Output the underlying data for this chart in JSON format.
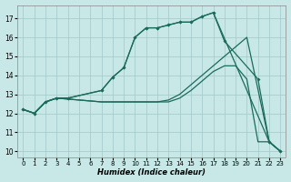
{
  "background_color": "#c8e8e8",
  "grid_color": "#a8cccc",
  "line_color": "#1a6b5a",
  "xlabel": "Humidex (Indice chaleur)",
  "xlim": [
    -0.5,
    23.5
  ],
  "ylim": [
    9.7,
    17.7
  ],
  "yticks": [
    10,
    11,
    12,
    13,
    14,
    15,
    16,
    17
  ],
  "xticks": [
    0,
    1,
    2,
    3,
    4,
    5,
    6,
    7,
    8,
    9,
    10,
    11,
    12,
    13,
    14,
    15,
    16,
    17,
    18,
    19,
    20,
    21,
    22,
    23
  ],
  "curve1_x": [
    0,
    1,
    2,
    3,
    4,
    7,
    8,
    9,
    10,
    11,
    12,
    13,
    14,
    15,
    16,
    17,
    22,
    23
  ],
  "curve1_y": [
    12.2,
    12.0,
    12.6,
    12.8,
    12.8,
    13.2,
    13.9,
    14.4,
    16.0,
    16.5,
    16.5,
    16.65,
    16.8,
    16.8,
    17.1,
    17.3,
    10.5,
    10.0
  ],
  "curve2_x": [
    0,
    1,
    2,
    3,
    4,
    7,
    8,
    9,
    10,
    11,
    12,
    13,
    14,
    15,
    16,
    17,
    18,
    21,
    22,
    23
  ],
  "curve2_y": [
    12.2,
    12.0,
    12.6,
    12.8,
    12.8,
    13.2,
    13.9,
    14.4,
    16.0,
    16.5,
    16.5,
    16.65,
    16.8,
    16.8,
    17.1,
    17.3,
    15.8,
    13.8,
    10.5,
    10.0
  ],
  "curve3_x": [
    0,
    1,
    2,
    3,
    4,
    5,
    6,
    7,
    8,
    9,
    10,
    11,
    12,
    13,
    14,
    15,
    16,
    17,
    18,
    19,
    20,
    22,
    23
  ],
  "curve3_y": [
    12.2,
    12.0,
    12.6,
    12.8,
    12.75,
    12.7,
    12.65,
    12.6,
    12.6,
    12.6,
    12.6,
    12.6,
    12.6,
    12.7,
    13.0,
    13.5,
    14.0,
    14.5,
    15.0,
    15.5,
    16.0,
    10.5,
    10.0
  ],
  "curve4_x": [
    0,
    1,
    2,
    3,
    4,
    5,
    6,
    7,
    8,
    9,
    10,
    11,
    12,
    13,
    14,
    15,
    16,
    17,
    18,
    19,
    20,
    21,
    22,
    23
  ],
  "curve4_y": [
    12.2,
    12.0,
    12.6,
    12.8,
    12.75,
    12.7,
    12.65,
    12.6,
    12.6,
    12.6,
    12.6,
    12.6,
    12.6,
    12.6,
    12.8,
    13.2,
    13.7,
    14.2,
    14.5,
    14.5,
    13.8,
    10.5,
    10.5,
    10.0
  ]
}
